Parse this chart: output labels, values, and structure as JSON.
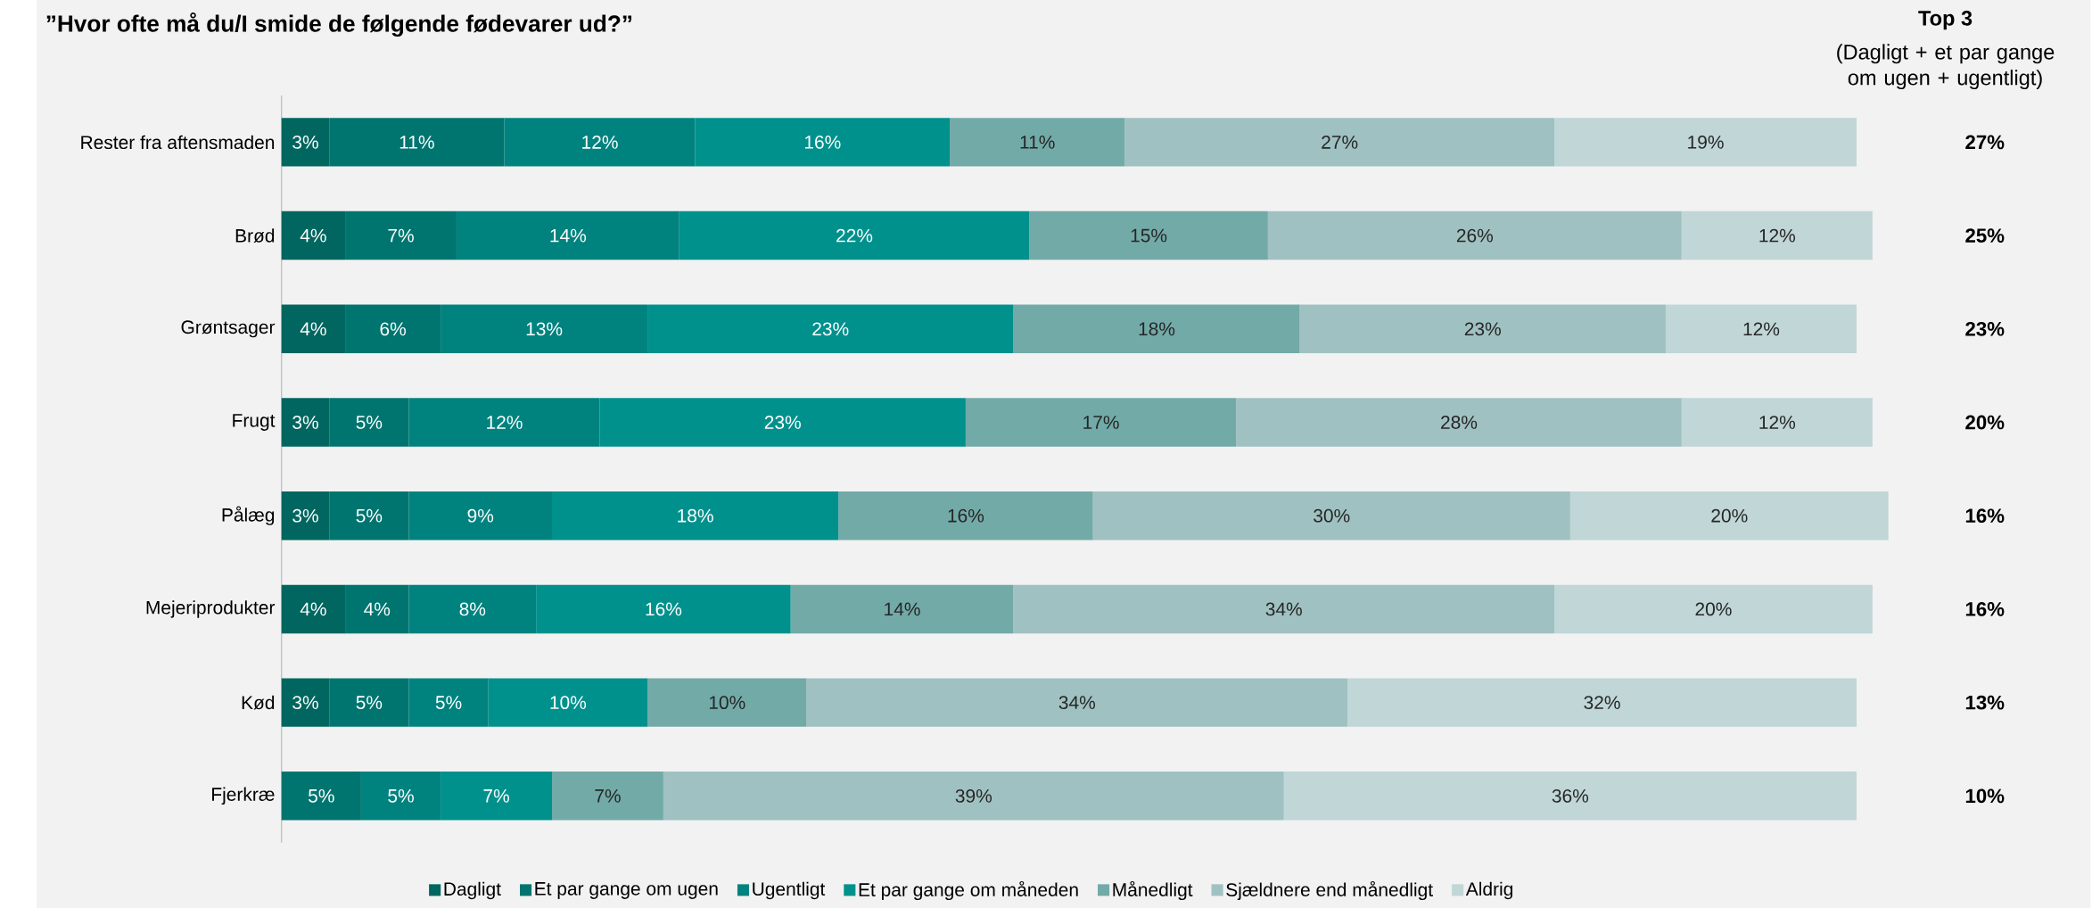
{
  "chart_data": {
    "type": "bar",
    "orientation": "horizontal",
    "stacked": true,
    "title": "”Hvor ofte må du/I smide de følgende fødevarer ud?”",
    "categories": [
      "Rester fra aftensmaden",
      "Brød",
      "Grøntsager",
      "Frugt",
      "Pålæg",
      "Mejeriprodukter",
      "Kød",
      "Fjerkræ"
    ],
    "series": [
      {
        "name": "Dagligt",
        "color": "#00665f",
        "values": [
          3,
          4,
          4,
          3,
          3,
          4,
          3,
          null
        ],
        "value_labels": [
          "3%",
          "4%",
          "4%",
          "3%",
          "3%",
          "4%",
          "3%",
          null
        ]
      },
      {
        "name": "Et par gange om ugen",
        "color": "#007570",
        "values": [
          11,
          7,
          6,
          5,
          5,
          4,
          5,
          5
        ],
        "value_labels": [
          "11%",
          "7%",
          "6%",
          "5%",
          "5%",
          "4%",
          "5%",
          "5%"
        ]
      },
      {
        "name": "Ugentligt",
        "color": "#00837f",
        "values": [
          12,
          14,
          13,
          12,
          9,
          8,
          5,
          5
        ],
        "value_labels": [
          "12%",
          "14%",
          "13%",
          "12%",
          "9%",
          "8%",
          "5%",
          "5%"
        ]
      },
      {
        "name": "Et par gange om måneden",
        "color": "#00918d",
        "values": [
          16,
          22,
          23,
          23,
          18,
          16,
          10,
          7
        ],
        "value_labels": [
          "16%",
          "22%",
          "23%",
          "23%",
          "18%",
          "16%",
          "10%",
          "7%"
        ]
      },
      {
        "name": "Månedligt",
        "color": "#72aaa8",
        "values": [
          11,
          15,
          18,
          17,
          16,
          14,
          10,
          7
        ],
        "value_labels": [
          "11%",
          "15%",
          "18%",
          "17%",
          "16%",
          "14%",
          "10%",
          "7%"
        ]
      },
      {
        "name": "Sjældnere end månedligt",
        "color": "#a0c1c1",
        "values": [
          27,
          26,
          23,
          28,
          30,
          34,
          34,
          39
        ],
        "value_labels": [
          "27%",
          "26%",
          "23%",
          "28%",
          "30%",
          "34%",
          "34%",
          "39%"
        ]
      },
      {
        "name": "Aldrig",
        "color": "#c0d6d7",
        "values": [
          19,
          12,
          12,
          12,
          20,
          20,
          32,
          36
        ],
        "value_labels": [
          "19%",
          "12%",
          "12%",
          "12%",
          "20%",
          "20%",
          "32%",
          "36%"
        ]
      }
    ],
    "annotations": [
      "Top 3",
      "(Dagligt + et par gange om ugen + ugentligt)",
      "27%",
      "25%",
      "23%",
      "20%",
      "16%",
      "16%",
      "13%",
      "10%"
    ],
    "legend": "bottom"
  }
}
